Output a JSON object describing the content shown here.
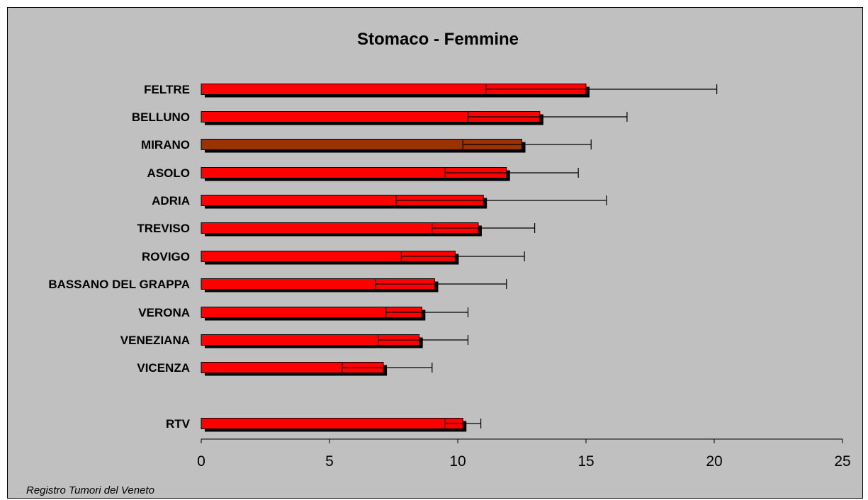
{
  "chart_data": {
    "type": "bar",
    "orientation": "horizontal",
    "title": "Stomaco - Femmine",
    "xlabel": "",
    "ylabel": "",
    "xlim": [
      0,
      25
    ],
    "xticks": [
      0,
      5,
      10,
      15,
      20,
      25
    ],
    "grid": false,
    "legend": "none",
    "categories": [
      "FELTRE",
      "BELLUNO",
      "MIRANO",
      "ASOLO",
      "ADRIA",
      "TREVISO",
      "ROVIGO",
      "BASSANO DEL GRAPPA",
      "VERONA",
      "VENEZIANA",
      "VICENZA",
      "RTV"
    ],
    "values": [
      15.0,
      13.2,
      12.5,
      11.9,
      11.0,
      10.8,
      9.9,
      9.1,
      8.6,
      8.5,
      7.1,
      10.2
    ],
    "ci_low": [
      11.1,
      10.4,
      10.2,
      9.5,
      7.6,
      9.0,
      7.8,
      6.8,
      7.2,
      6.9,
      5.5,
      9.5
    ],
    "ci_high": [
      20.1,
      16.6,
      15.2,
      14.7,
      15.8,
      13.0,
      12.6,
      11.9,
      10.4,
      10.4,
      9.0,
      10.9
    ],
    "highlight_category": "MIRANO",
    "colors": {
      "bar": "#ff0000",
      "highlight_bar": "#993300",
      "shadow": "#000000",
      "background": "#c0c0c0"
    },
    "source_note": "Registro Tumori del Veneto"
  }
}
